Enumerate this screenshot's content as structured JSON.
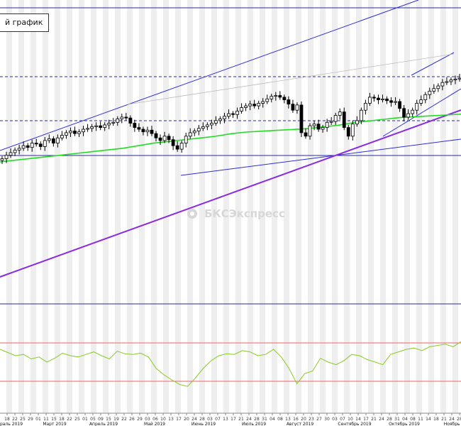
{
  "header": {
    "chart_tag": "й график"
  },
  "watermark": {
    "text": "БКСЭкспресс"
  },
  "colors": {
    "up_candle": "#ffffff",
    "down_candle": "#000000",
    "moving_average": "#22dd22",
    "trend_channel": "#2b2bdd",
    "trend_primary": "#8a2be2",
    "horizontal_level": "#2a2a9a",
    "oscillator": "#88cc22",
    "oscillator_bounds": "#ee6666",
    "column_stripe": "#eeeeee"
  },
  "chart_data": {
    "type": "candlestick",
    "grid": false,
    "x_axis": {
      "day_ticks": [
        "18",
        "22",
        "25",
        "29",
        "01",
        "11",
        "15",
        "18",
        "22",
        "25",
        "01",
        "05",
        "09",
        "15",
        "19",
        "22",
        "26",
        "29",
        "03",
        "06",
        "10",
        "13",
        "17",
        "20",
        "24",
        "28",
        "03",
        "07",
        "13",
        "17",
        "21",
        "24",
        "28",
        "31",
        "04",
        "08",
        "13",
        "16",
        "20",
        "23",
        "27",
        "30",
        "03",
        "07",
        "10",
        "14",
        "17",
        "21",
        "24",
        "28",
        "31",
        "04",
        "08",
        "11",
        "14",
        "18",
        "21",
        "24",
        "28"
      ],
      "month_labels": [
        "раль 2019",
        "Март 2019",
        "Апрель 2019",
        "Май 2019",
        "Июнь 2019",
        "Июль 2019",
        "Август 2019",
        "Сентябрь 2019",
        "Октябрь 2019",
        "Ноябрь 2"
      ]
    },
    "price_series": [
      34,
      38,
      41,
      44,
      46,
      49,
      47,
      52,
      51,
      48,
      55,
      57,
      52,
      58,
      61,
      64,
      66,
      63,
      65,
      68,
      69,
      71,
      72,
      70,
      73,
      75,
      76,
      80,
      82,
      81,
      75,
      70,
      68,
      65,
      67,
      63,
      58,
      55,
      60,
      56,
      49,
      45,
      52,
      60,
      64,
      66,
      69,
      71,
      73,
      75,
      78,
      80,
      83,
      86,
      85,
      89,
      93,
      95,
      97,
      95,
      98,
      100,
      103,
      106,
      107,
      105,
      102,
      97,
      90,
      96,
      64,
      60,
      72,
      74,
      68,
      70,
      76,
      77,
      84,
      88,
      70,
      60,
      74,
      78,
      90,
      98,
      105,
      104,
      102,
      103,
      101,
      99,
      100,
      92,
      82,
      86,
      90,
      98,
      102,
      108,
      112,
      115,
      118,
      122,
      123,
      125,
      126,
      127
    ],
    "moving_average": [
      25,
      27,
      29,
      31,
      33,
      35,
      37,
      39,
      41,
      44,
      47,
      49,
      51,
      53,
      55,
      58,
      60,
      61,
      62,
      63,
      64,
      66,
      68,
      71,
      73,
      75,
      77,
      78,
      79,
      80,
      81
    ],
    "oscillator": [
      70,
      65,
      60,
      62,
      55,
      58,
      50,
      56,
      64,
      60,
      58,
      62,
      66,
      60,
      55,
      67,
      63,
      62,
      64,
      58,
      40,
      30,
      22,
      15,
      12,
      25,
      40,
      52,
      60,
      63,
      62,
      68,
      66,
      60,
      62,
      70,
      58,
      40,
      16,
      32,
      36,
      56,
      50,
      46,
      52,
      62,
      60,
      54,
      50,
      46,
      62,
      66,
      70,
      72,
      68,
      74,
      76,
      78,
      74,
      82
    ],
    "oscillator_bounds": [
      80,
      20
    ]
  }
}
